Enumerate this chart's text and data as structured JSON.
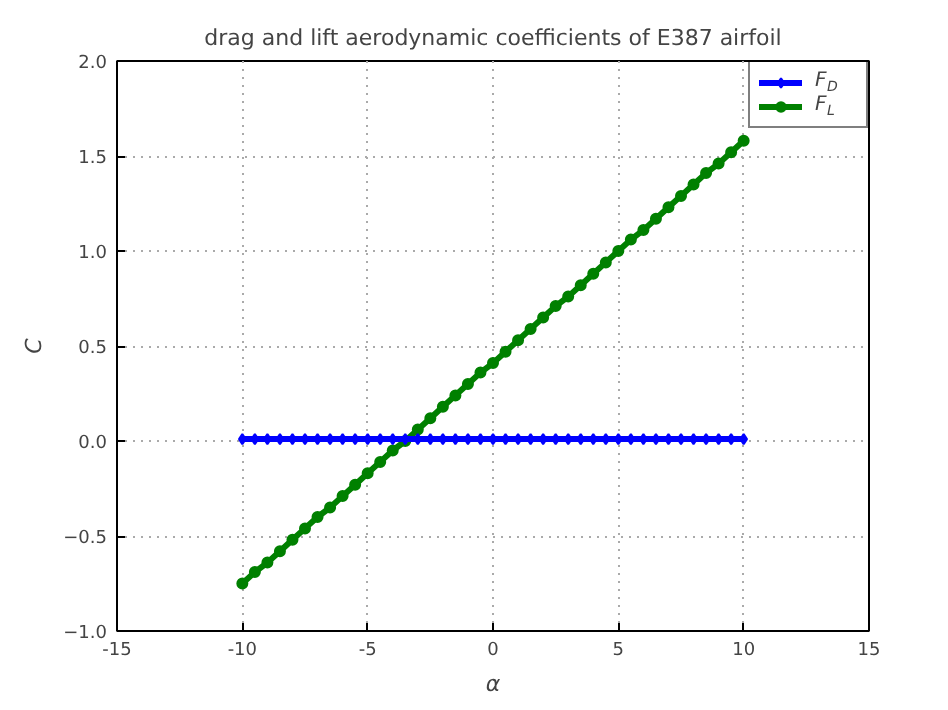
{
  "chart_data": {
    "type": "line",
    "title": "drag and lift aerodynamic coefficients of E387 airfoil",
    "xlabel": "α",
    "ylabel": "C",
    "x": [
      -10,
      -9.5,
      -9,
      -8.5,
      -8,
      -7.5,
      -7,
      -6.5,
      -6,
      -5.5,
      -5,
      -4.5,
      -4,
      -3.5,
      -3,
      -2.5,
      -2,
      -1.5,
      -1,
      -0.5,
      0,
      0.5,
      1,
      1.5,
      2,
      2.5,
      3,
      3.5,
      4,
      4.5,
      5,
      5.5,
      6,
      6.5,
      7,
      7.5,
      8,
      8.5,
      9,
      9.5,
      10
    ],
    "series": [
      {
        "name": "F$_{D}$",
        "color": "#0000ff",
        "marker": "diamond",
        "values": [
          0.01,
          0.01,
          0.01,
          0.01,
          0.01,
          0.01,
          0.01,
          0.01,
          0.01,
          0.01,
          0.01,
          0.01,
          0.01,
          0.01,
          0.01,
          0.01,
          0.01,
          0.01,
          0.01,
          0.01,
          0.01,
          0.01,
          0.01,
          0.01,
          0.01,
          0.01,
          0.01,
          0.01,
          0.01,
          0.01,
          0.01,
          0.01,
          0.01,
          0.01,
          0.01,
          0.01,
          0.01,
          0.01,
          0.01,
          0.01,
          0.01
        ]
      },
      {
        "name": "F$_{L}$",
        "color": "#008000",
        "marker": "circle",
        "values": [
          -0.75,
          -0.69,
          -0.64,
          -0.58,
          -0.52,
          -0.46,
          -0.4,
          -0.35,
          -0.29,
          -0.23,
          -0.17,
          -0.11,
          -0.05,
          0.0,
          0.06,
          0.12,
          0.18,
          0.24,
          0.3,
          0.36,
          0.41,
          0.47,
          0.53,
          0.59,
          0.65,
          0.71,
          0.76,
          0.82,
          0.88,
          0.94,
          1.0,
          1.06,
          1.11,
          1.17,
          1.23,
          1.29,
          1.35,
          1.41,
          1.46,
          1.52,
          1.58
        ]
      }
    ],
    "xlim": [
      -15,
      15
    ],
    "ylim": [
      -1.0,
      2.0
    ],
    "xticks": [
      -15,
      -10,
      -5,
      0,
      5,
      10,
      15
    ],
    "yticks": [
      {
        "value": -1.0,
        "label": "−1.0"
      },
      {
        "value": -0.5,
        "label": "−0.5"
      },
      {
        "value": 0.0,
        "label": "0.0"
      },
      {
        "value": 0.5,
        "label": "0.5"
      },
      {
        "value": 1.0,
        "label": "1.0"
      },
      {
        "value": 1.5,
        "label": "1.5"
      },
      {
        "value": 2.0,
        "label": "2.0"
      }
    ],
    "grid": true,
    "legend": "top right",
    "line_style": "solid"
  }
}
